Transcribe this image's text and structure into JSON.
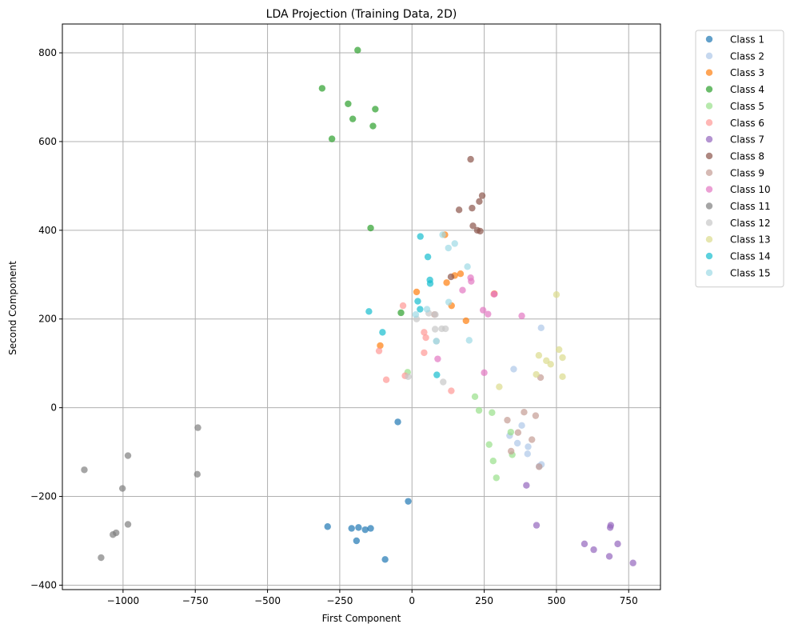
{
  "chart_data": {
    "type": "scatter",
    "title": "LDA Projection (Training Data, 2D)",
    "xlabel": "First Component",
    "ylabel": "Second Component",
    "xlim": [
      -1210,
      860
    ],
    "ylim": [
      -410,
      865
    ],
    "x_ticks": [
      -1000,
      -750,
      -500,
      -250,
      0,
      250,
      500,
      750
    ],
    "x_tick_labels": [
      "−1000",
      "−750",
      "−500",
      "−250",
      "0",
      "250",
      "500",
      "750"
    ],
    "y_ticks": [
      -400,
      -200,
      0,
      200,
      400,
      600,
      800
    ],
    "y_tick_labels": [
      "−400",
      "−200",
      "0",
      "200",
      "400",
      "600",
      "800"
    ],
    "grid": true,
    "legend_position": "outside-top-right",
    "series": [
      {
        "name": "Class 1",
        "color": "#1f77b4",
        "points": [
          [
            -49,
            -32
          ],
          [
            -13,
            -211
          ],
          [
            -292,
            -268
          ],
          [
            -209,
            -272
          ],
          [
            -185,
            -270
          ],
          [
            -162,
            -275
          ],
          [
            -143,
            -272
          ],
          [
            -192,
            -300
          ],
          [
            -93,
            -342
          ]
        ]
      },
      {
        "name": "Class 2",
        "color": "#aec7e8",
        "points": [
          [
            447,
            180
          ],
          [
            352,
            87
          ],
          [
            380,
            -40
          ],
          [
            338,
            -63
          ],
          [
            365,
            -80
          ],
          [
            402,
            -88
          ],
          [
            400,
            -104
          ],
          [
            448,
            -128
          ],
          [
            440,
            -132
          ]
        ]
      },
      {
        "name": "Class 3",
        "color": "#ff7f0e",
        "points": [
          [
            114,
            390
          ],
          [
            148,
            298
          ],
          [
            168,
            302
          ],
          [
            120,
            282
          ],
          [
            16,
            261
          ],
          [
            137,
            230
          ],
          [
            187,
            196
          ],
          [
            -110,
            140
          ],
          [
            285,
            257
          ]
        ]
      },
      {
        "name": "Class 4",
        "color": "#2ca02c",
        "points": [
          [
            -188,
            806
          ],
          [
            -311,
            720
          ],
          [
            -221,
            685
          ],
          [
            -127,
            673
          ],
          [
            -205,
            651
          ],
          [
            -135,
            635
          ],
          [
            -277,
            606
          ],
          [
            -143,
            405
          ],
          [
            -38,
            214
          ]
        ]
      },
      {
        "name": "Class 5",
        "color": "#98df8a",
        "points": [
          [
            -15,
            80
          ],
          [
            218,
            25
          ],
          [
            232,
            -6
          ],
          [
            277,
            -11
          ],
          [
            342,
            -55
          ],
          [
            267,
            -83
          ],
          [
            347,
            -106
          ],
          [
            281,
            -120
          ],
          [
            292,
            -158
          ]
        ]
      },
      {
        "name": "Class 6",
        "color": "#ff9896",
        "points": [
          [
            -31,
            230
          ],
          [
            48,
            158
          ],
          [
            -114,
            128
          ],
          [
            42,
            124
          ],
          [
            -24,
            72
          ],
          [
            -89,
            63
          ],
          [
            136,
            38
          ],
          [
            42,
            170
          ],
          [
            283,
            256
          ]
        ]
      },
      {
        "name": "Class 7",
        "color": "#9467bd",
        "points": [
          [
            396,
            -175
          ],
          [
            431,
            -265
          ],
          [
            688,
            -265
          ],
          [
            686,
            -270
          ],
          [
            597,
            -307
          ],
          [
            712,
            -307
          ],
          [
            629,
            -320
          ],
          [
            683,
            -335
          ],
          [
            765,
            -350
          ]
        ]
      },
      {
        "name": "Class 8",
        "color": "#8c564b",
        "points": [
          [
            203,
            560
          ],
          [
            243,
            478
          ],
          [
            233,
            465
          ],
          [
            163,
            446
          ],
          [
            208,
            450
          ],
          [
            211,
            410
          ],
          [
            226,
            400
          ],
          [
            236,
            398
          ],
          [
            135,
            295
          ]
        ]
      },
      {
        "name": "Class 9",
        "color": "#c49c94",
        "points": [
          [
            388,
            -10
          ],
          [
            428,
            -18
          ],
          [
            330,
            -28
          ],
          [
            367,
            -56
          ],
          [
            415,
            -72
          ],
          [
            343,
            -98
          ],
          [
            440,
            -133
          ],
          [
            445,
            68
          ],
          [
            78,
            210
          ]
        ]
      },
      {
        "name": "Class 10",
        "color": "#e377c2",
        "points": [
          [
            203,
            293
          ],
          [
            205,
            285
          ],
          [
            175,
            265
          ],
          [
            246,
            220
          ],
          [
            263,
            211
          ],
          [
            380,
            207
          ],
          [
            89,
            110
          ],
          [
            250,
            79
          ],
          [
            285,
            256
          ]
        ]
      },
      {
        "name": "Class 11",
        "color": "#7f7f7f",
        "points": [
          [
            -1134,
            -140
          ],
          [
            -741,
            -45
          ],
          [
            -983,
            -108
          ],
          [
            -743,
            -150
          ],
          [
            -1002,
            -182
          ],
          [
            -983,
            -263
          ],
          [
            -1024,
            -282
          ],
          [
            -1035,
            -286
          ],
          [
            -1076,
            -338
          ]
        ]
      },
      {
        "name": "Class 12",
        "color": "#c7c7c7",
        "points": [
          [
            58,
            213
          ],
          [
            81,
            210
          ],
          [
            80,
            177
          ],
          [
            103,
            178
          ],
          [
            116,
            178
          ],
          [
            85,
            150
          ],
          [
            16,
            200
          ],
          [
            -13,
            70
          ],
          [
            108,
            58
          ]
        ]
      },
      {
        "name": "Class 13",
        "color": "#dbdb8d",
        "points": [
          [
            500,
            255
          ],
          [
            509,
            131
          ],
          [
            439,
            118
          ],
          [
            521,
            113
          ],
          [
            465,
            106
          ],
          [
            480,
            98
          ],
          [
            430,
            75
          ],
          [
            521,
            70
          ],
          [
            302,
            47
          ]
        ]
      },
      {
        "name": "Class 14",
        "color": "#17becf",
        "points": [
          [
            29,
            386
          ],
          [
            55,
            340
          ],
          [
            62,
            288
          ],
          [
            63,
            280
          ],
          [
            20,
            240
          ],
          [
            -149,
            217
          ],
          [
            28,
            222
          ],
          [
            -102,
            170
          ],
          [
            86,
            74
          ]
        ]
      },
      {
        "name": "Class 15",
        "color": "#9edae5",
        "points": [
          [
            106,
            390
          ],
          [
            148,
            370
          ],
          [
            126,
            360
          ],
          [
            192,
            318
          ],
          [
            127,
            238
          ],
          [
            52,
            222
          ],
          [
            13,
            210
          ],
          [
            84,
            150
          ],
          [
            198,
            152
          ]
        ]
      }
    ]
  }
}
